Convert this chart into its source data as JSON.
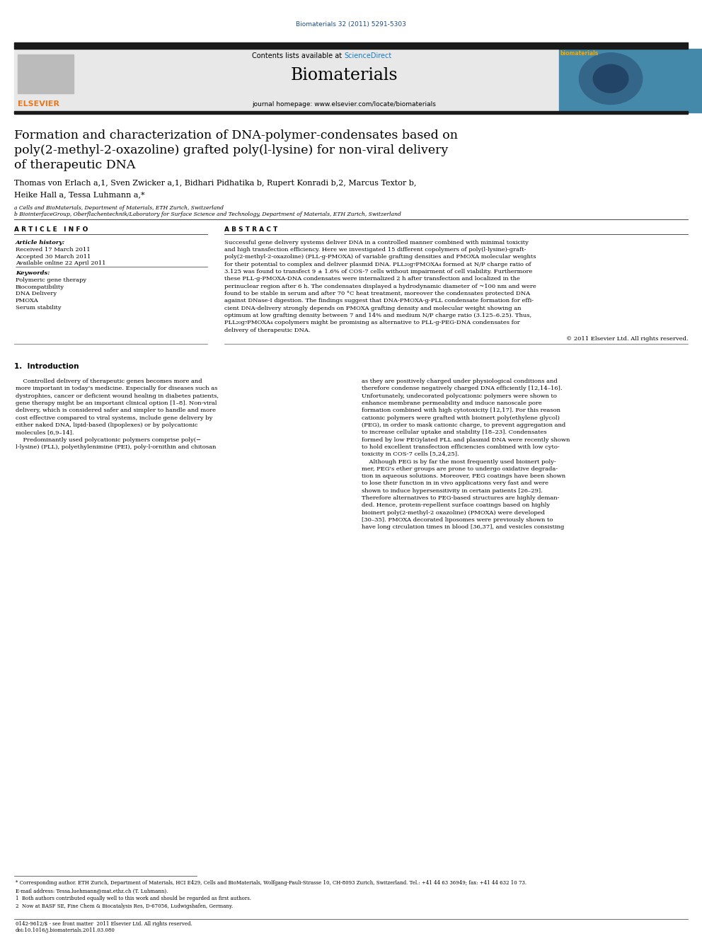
{
  "page_width": 9.92,
  "page_height": 13.23,
  "bg_color": "#ffffff",
  "top_citation": "Biomaterials 32 (2011) 5291-5303",
  "top_citation_color": "#1a4b8c",
  "journal_name": "Biomaterials",
  "contents_line": "Contents lists available at ScienceDirect",
  "sciencedirect_color": "#1a7bbf",
  "journal_homepage": "journal homepage: www.elsevier.com/locate/biomaterials",
  "header_bg": "#e8e8e8",
  "header_bar_color": "#1a1a1a",
  "elsevier_color": "#e87722",
  "article_title_line1": "Formation and characterization of DNA-polymer-condensates based on",
  "article_title_line2": "poly(2-methyl-2-oxazoline) grafted poly(l-lysine) for non-viral delivery",
  "article_title_line3": "of therapeutic DNA",
  "authors_line1": "Thomas von Erlach a,1, Sven Zwicker a,1, Bidhari Pidhatika b, Rupert Konradi b,2, Marcus Textor b,",
  "authors_line2": "Heike Hall a, Tessa Luhmann a,*",
  "affil_a": "a Cells and BioMaterials, Department of Materials, ETH Zurich, Switzerland",
  "affil_b": "b BiointerfaceGroup, Oberflachentechnik/Laboratory for Surface Science and Technology, Department of Materials, ETH Zurich, Switzerland",
  "article_info_header": "A R T I C L E   I N F O",
  "abstract_header": "A B S T R A C T",
  "article_history_label": "Article history:",
  "received": "Received 17 March 2011",
  "accepted": "Accepted 30 March 2011",
  "available": "Available online 22 April 2011",
  "keywords_label": "Keywords:",
  "keywords": [
    "Polymeric gene therapy",
    "Biocompatibility",
    "DNA Delivery",
    "PMOXA",
    "Serum stability"
  ],
  "copyright": "2011 Elsevier Ltd. All rights reserved.",
  "intro_header": "1.  Introduction",
  "footnote_star": "* Corresponding author. ETH Zurich, Department of Materials, HCI E429, Cells and BioMaterials, Wolfgang-Pauli-Strasse 10, CH-8093 Zurich, Switzerland. Tel.: +41 44 63 36949; fax: +41 44 632 10 73.",
  "footnote_email": "E-mail address: Tessa.luehmann@mat.ethz.ch (T. Luhmann).",
  "footnote_1": "1  Both authors contributed equally well to this work and should be regarded as first authors.",
  "footnote_2": "2  Now at BASF SE, Fine Chem & Biocatalysis Res, D-67056, Ludwigshafen, Germany.",
  "bottom_issn": "0142-9612/$ - see front matter  2011 Elsevier Ltd. All rights reserved.",
  "bottom_doi": "doi:10.1016/j.biomaterials.2011.03.080"
}
